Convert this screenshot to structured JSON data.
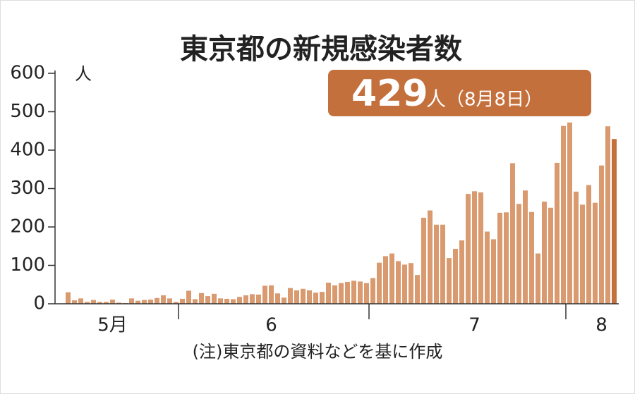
{
  "chart_data": {
    "type": "bar",
    "title": "東京都の新規感染者数",
    "y_unit": "人",
    "note": "(注)東京都の資料などを基に作成",
    "annotation": {
      "value": 429,
      "label": "429",
      "unit": "人",
      "date": "（8月8日）"
    },
    "color": "#d99a70",
    "highlight_color": "#c4703c",
    "ylim": [
      0,
      600
    ],
    "yticks": [
      0,
      100,
      200,
      300,
      400,
      500,
      600
    ],
    "categories": [
      null,
      null,
      null,
      null,
      null,
      null,
      null,
      "5月",
      null,
      null,
      null,
      null,
      null,
      null,
      null,
      null,
      null,
      null,
      null,
      null,
      null,
      null,
      null,
      null,
      null,
      null,
      null,
      null,
      null,
      null,
      null,
      null,
      "6",
      null,
      null,
      null,
      null,
      null,
      null,
      null,
      null,
      null,
      null,
      null,
      null,
      null,
      null,
      null,
      null,
      null,
      null,
      null,
      null,
      null,
      null,
      null,
      null,
      null,
      null,
      null,
      null,
      null,
      null,
      null,
      "7",
      null,
      null,
      null,
      null,
      null,
      null,
      null,
      null,
      null,
      null,
      null,
      null,
      null,
      null,
      null,
      null,
      null,
      null,
      null,
      "8",
      null,
      null
    ],
    "values": [
      30,
      9,
      14,
      5,
      10,
      5,
      5,
      11,
      3,
      2,
      14,
      8,
      10,
      11,
      15,
      22,
      14,
      5,
      13,
      34,
      12,
      28,
      20,
      26,
      14,
      13,
      12,
      18,
      22,
      25,
      24,
      47,
      48,
      27,
      16,
      41,
      35,
      39,
      35,
      29,
      31,
      55,
      48,
      54,
      57,
      60,
      58,
      54,
      67,
      107,
      124,
      131,
      111,
      102,
      106,
      75,
      224,
      243,
      206,
      206,
      119,
      143,
      165,
      286,
      293,
      290,
      188,
      168,
      237,
      238,
      366,
      260,
      295,
      239,
      131,
      266,
      250,
      367,
      463,
      472,
      292,
      258,
      309,
      263,
      360,
      462,
      429
    ]
  }
}
